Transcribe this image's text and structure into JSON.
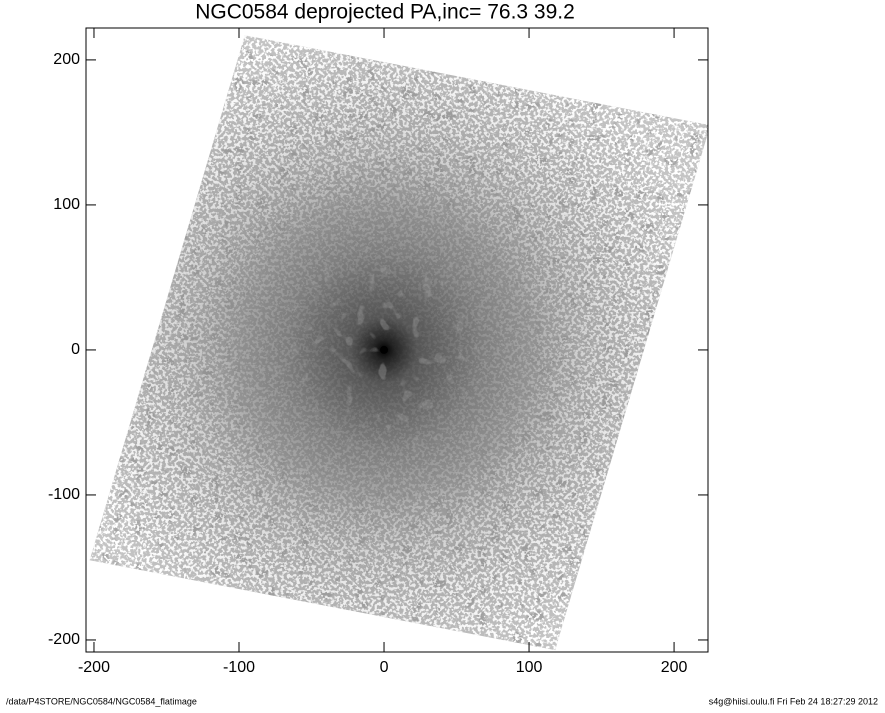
{
  "chart_data": {
    "type": "image",
    "title": "NGC0584 deprojected  PA,inc=  76.3  39.2",
    "xlim": [
      -205.5,
      223.4
    ],
    "ylim": [
      -208.3,
      222
    ],
    "xticks": [
      -200,
      -100,
      0,
      100,
      200
    ],
    "yticks": [
      -200,
      -100,
      0,
      100,
      200
    ],
    "footprint": {
      "x": [
        -96,
        225,
        118,
        -203
      ],
      "y": [
        217,
        155,
        -207,
        -145
      ]
    },
    "center": {
      "x": [
        0
      ],
      "y": [
        0
      ]
    },
    "footer_left": "/data/P4STORE/NGC0584/NGC0584_flatimage",
    "footer_right": "s4g@hiisi.oulu.fi  Fri Feb 24 18:27:29 2012"
  }
}
